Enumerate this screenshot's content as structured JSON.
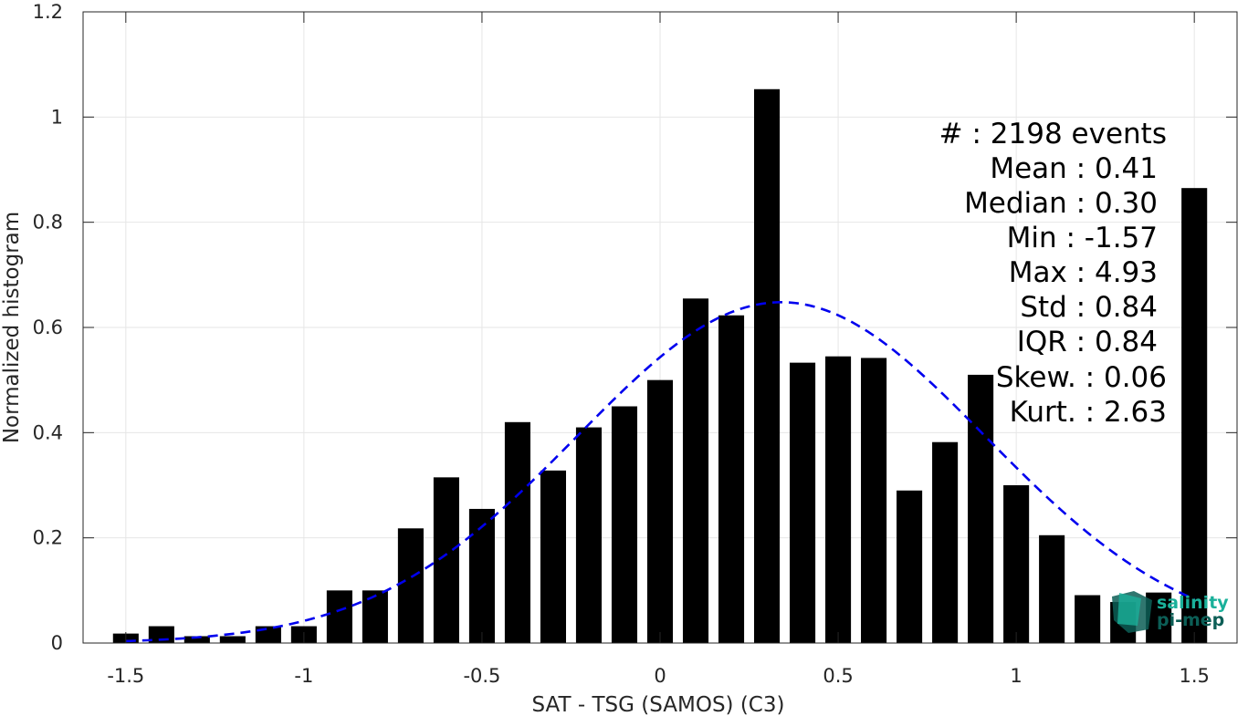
{
  "chart_data": {
    "type": "bar",
    "xlabel": "SAT - TSG (SAMOS) (C3)",
    "ylabel": "Normalized histogram",
    "xlim": [
      -1.62,
      1.62
    ],
    "ylim": [
      0,
      1.2
    ],
    "xticks": [
      -1.5,
      -1,
      -0.5,
      0,
      0.5,
      1,
      1.5
    ],
    "xtick_labels": [
      "-1.5",
      "-1",
      "-0.5",
      "0",
      "0.5",
      "1",
      "1.5"
    ],
    "yticks": [
      0,
      0.2,
      0.4,
      0.6,
      0.8,
      1,
      1.2
    ],
    "ytick_labels": [
      "0",
      "0.2",
      "0.4",
      "0.6",
      "0.8",
      "1",
      "1.2"
    ],
    "grid": true,
    "bin_width": 0.1,
    "bins": [
      {
        "x": -1.5,
        "y": 0.018
      },
      {
        "x": -1.4,
        "y": 0.032
      },
      {
        "x": -1.3,
        "y": 0.013
      },
      {
        "x": -1.2,
        "y": 0.013
      },
      {
        "x": -1.1,
        "y": 0.032
      },
      {
        "x": -1.0,
        "y": 0.032
      },
      {
        "x": -0.9,
        "y": 0.1
      },
      {
        "x": -0.8,
        "y": 0.1
      },
      {
        "x": -0.7,
        "y": 0.218
      },
      {
        "x": -0.6,
        "y": 0.315
      },
      {
        "x": -0.5,
        "y": 0.255
      },
      {
        "x": -0.4,
        "y": 0.42
      },
      {
        "x": -0.3,
        "y": 0.328
      },
      {
        "x": -0.2,
        "y": 0.41
      },
      {
        "x": -0.1,
        "y": 0.45
      },
      {
        "x": 0.0,
        "y": 0.5
      },
      {
        "x": 0.1,
        "y": 0.655
      },
      {
        "x": 0.2,
        "y": 0.623
      },
      {
        "x": 0.3,
        "y": 1.053
      },
      {
        "x": 0.4,
        "y": 0.533
      },
      {
        "x": 0.5,
        "y": 0.545
      },
      {
        "x": 0.6,
        "y": 0.542
      },
      {
        "x": 0.7,
        "y": 0.29
      },
      {
        "x": 0.8,
        "y": 0.382
      },
      {
        "x": 0.9,
        "y": 0.51
      },
      {
        "x": 1.0,
        "y": 0.3
      },
      {
        "x": 1.1,
        "y": 0.205
      },
      {
        "x": 1.2,
        "y": 0.091
      },
      {
        "x": 1.3,
        "y": 0.078
      },
      {
        "x": 1.4,
        "y": 0.096
      },
      {
        "x": 1.5,
        "y": 0.865
      }
    ],
    "fit_curve": {
      "style": "dashed",
      "color": "#0000ee",
      "mean": 0.34,
      "std": 0.573,
      "peak": 0.648,
      "x_range": [
        -1.5,
        1.5
      ]
    },
    "bar_color": "#000000",
    "stats": [
      "#  : 2198 events",
      "Mean : 0.41",
      "Median : 0.30",
      "Min : -1.57",
      "Max : 4.93",
      "Std : 0.84",
      "IQR : 0.84",
      "Skew. : 0.06",
      "Kurt. : 2.63"
    ]
  },
  "logo": {
    "line1": "salinity",
    "line2": "pi-mep",
    "color": "#1ab09a",
    "dark_color": "#0c5e56"
  }
}
